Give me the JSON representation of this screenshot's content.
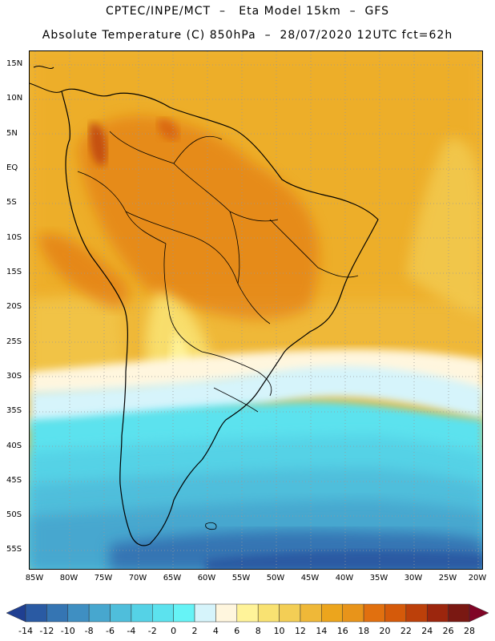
{
  "title_line1": "CPTEC/INPE/MCT  –   Eta Model 15km  –  GFS",
  "title_line2": "Absolute Temperature (C) 850hPa  –  28/07/2020 12UTC fct=62h",
  "lat_labels": [
    "15N",
    "10N",
    "5N",
    "EQ",
    "5S",
    "10S",
    "15S",
    "20S",
    "25S",
    "30S",
    "35S",
    "40S",
    "45S",
    "50S",
    "55S"
  ],
  "lon_labels": [
    "85W",
    "80W",
    "75W",
    "70W",
    "65W",
    "60W",
    "55W",
    "50W",
    "45W",
    "40W",
    "35W",
    "30W",
    "25W",
    "20W"
  ],
  "colorbar": {
    "labels": [
      "-14",
      "-12",
      "-10",
      "-8",
      "-6",
      "-4",
      "-2",
      "0",
      "2",
      "4",
      "6",
      "8",
      "10",
      "12",
      "14",
      "16",
      "18",
      "20",
      "22",
      "24",
      "26",
      "28"
    ],
    "colors": [
      "#1f3f91",
      "#2a5aa3",
      "#3575b3",
      "#3f8fc2",
      "#47a7cf",
      "#4fbedb",
      "#55d2e6",
      "#5ce2ee",
      "#66f3f6",
      "#d6f4fb",
      "#fff6de",
      "#fff399",
      "#f9e272",
      "#f3ce55",
      "#efb838",
      "#eca51d",
      "#e8941a",
      "#e1700f",
      "#d55a0a",
      "#bc400a",
      "#9c260d",
      "#7a1812",
      "#800526"
    ]
  }
}
